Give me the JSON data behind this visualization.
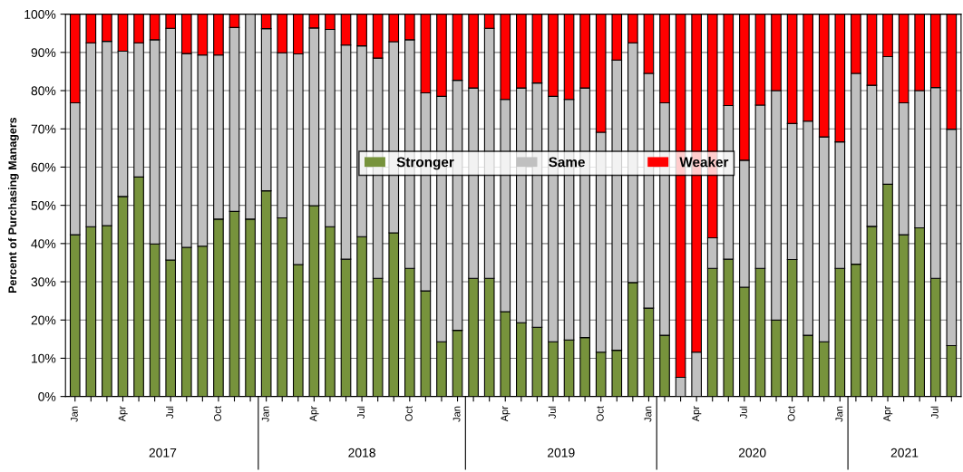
{
  "chart_data": {
    "type": "bar",
    "stacked": true,
    "ylabel": "Percent of Purchasing Managers",
    "categories": [
      "Jan",
      null,
      null,
      "Apr",
      null,
      null,
      "Jul",
      null,
      null,
      "Oct",
      null,
      null,
      "Jan",
      null,
      null,
      "Apr",
      null,
      null,
      "Jul",
      null,
      null,
      "Oct",
      null,
      null,
      "Jan",
      null,
      null,
      "Apr",
      null,
      null,
      "Jul",
      null,
      null,
      "Oct",
      null,
      null,
      "Jan",
      null,
      null,
      "Apr",
      null,
      null,
      "Jul",
      null,
      null,
      "Oct",
      null,
      null,
      "Jan",
      null,
      null,
      "Apr",
      null,
      null,
      "Jul",
      null
    ],
    "series": [
      {
        "name": "Stronger",
        "color": "#77933c",
        "values": [
          42.3,
          44.4,
          44.7,
          52.3,
          57.4,
          39.9,
          35.7,
          39.0,
          39.3,
          46.4,
          48.4,
          46.4,
          53.8,
          46.7,
          34.5,
          49.9,
          44.4,
          35.9,
          41.8,
          30.9,
          42.8,
          33.5,
          27.6,
          14.3,
          17.3,
          30.9,
          30.9,
          22.2,
          19.3,
          18.1,
          14.3,
          14.8,
          15.4,
          11.6,
          12.1,
          29.8,
          23.1,
          16.0,
          0,
          0,
          33.5,
          35.9,
          28.6,
          33.5,
          20.0,
          35.8,
          16.0,
          14.3,
          33.5,
          34.6,
          44.5,
          55.5,
          42.3,
          44.1,
          30.9,
          13.3
        ]
      },
      {
        "name": "Same",
        "color": "#c0c0c0",
        "values": [
          34.5,
          48.1,
          48.2,
          38.0,
          35.1,
          53.4,
          60.6,
          50.7,
          50.0,
          42.9,
          48.1,
          53.6,
          42.4,
          43.2,
          55.1,
          46.5,
          51.6,
          56.0,
          49.9,
          57.6,
          50.0,
          59.8,
          51.8,
          64.2,
          65.4,
          49.8,
          65.4,
          55.5,
          61.4,
          63.9,
          64.2,
          62.9,
          65.3,
          57.5,
          75.9,
          62.7,
          61.4,
          60.8,
          5.0,
          11.6,
          8.0,
          40.2,
          33.2,
          42.7,
          60.0,
          35.6,
          56.0,
          53.6,
          33.1,
          49.9,
          36.9,
          33.4,
          34.5,
          35.9,
          49.9,
          56.6
        ]
      },
      {
        "name": "Weaker",
        "color": "#ff0000",
        "values": [
          23.2,
          7.5,
          7.1,
          9.7,
          7.5,
          6.7,
          3.7,
          10.3,
          10.7,
          10.7,
          3.5,
          0,
          3.8,
          10.1,
          10.4,
          3.6,
          4.0,
          8.1,
          8.3,
          11.5,
          7.2,
          6.7,
          20.6,
          21.5,
          17.3,
          19.3,
          3.7,
          22.3,
          19.3,
          18.0,
          21.5,
          22.3,
          19.3,
          30.9,
          12.0,
          7.5,
          15.5,
          23.2,
          95.0,
          88.4,
          58.5,
          23.9,
          38.2,
          23.8,
          20.0,
          28.6,
          28.0,
          32.1,
          33.4,
          15.5,
          18.6,
          11.1,
          23.2,
          20.0,
          19.2,
          30.1
        ]
      }
    ],
    "ylim": [
      0,
      100
    ],
    "yticks": [
      {
        "value": 0,
        "label": "0%"
      },
      {
        "value": 10,
        "label": "10%"
      },
      {
        "value": 20,
        "label": "20%"
      },
      {
        "value": 30,
        "label": "30%"
      },
      {
        "value": 40,
        "label": "40%"
      },
      {
        "value": 50,
        "label": "50%"
      },
      {
        "value": 60,
        "label": "60%"
      },
      {
        "value": 70,
        "label": "70%"
      },
      {
        "value": 80,
        "label": "80%"
      },
      {
        "value": 90,
        "label": "90%"
      },
      {
        "value": 100,
        "label": "100%"
      }
    ],
    "grid": "y",
    "legend": "center",
    "annotations": [
      "2017",
      "2018",
      "2019",
      "2020",
      "2021"
    ]
  }
}
